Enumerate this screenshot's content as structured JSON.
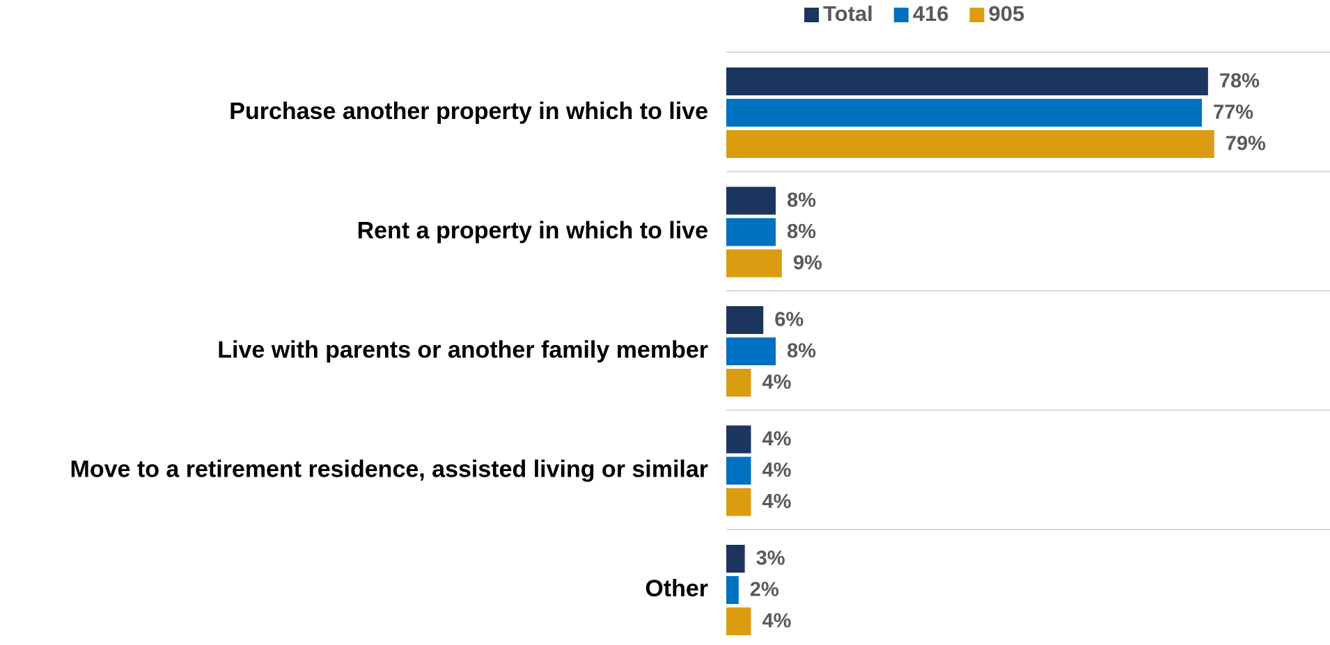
{
  "chart_data": {
    "type": "bar",
    "orientation": "horizontal",
    "categories": [
      "Purchase another property in which to live",
      "Rent a property in which to live",
      "Live with parents or another family member",
      "Move to a retirement residence, assisted living or similar",
      "Other"
    ],
    "series": [
      {
        "name": "Total",
        "color": "#1c355e",
        "values": [
          78,
          8,
          6,
          4,
          3
        ],
        "value_labels": [
          "78%",
          "8%",
          "6%",
          "4%",
          "3%"
        ]
      },
      {
        "name": "416",
        "color": "#0070c0",
        "values": [
          77,
          8,
          8,
          4,
          2
        ],
        "value_labels": [
          "77%",
          "8%",
          "8%",
          "4%",
          "2%"
        ]
      },
      {
        "name": "905",
        "color": "#da9c10",
        "values": [
          79,
          9,
          4,
          4,
          4
        ],
        "value_labels": [
          "79%",
          "9%",
          "4%",
          "4%",
          "4%"
        ]
      }
    ],
    "legend": "top"
  }
}
